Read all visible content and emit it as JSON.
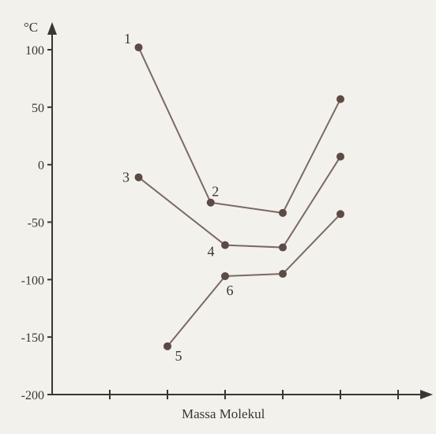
{
  "chart_data": {
    "type": "line",
    "ylabel": "°C",
    "xlabel": "Massa Molekul",
    "ylim": [
      -200,
      115
    ],
    "yticks": [
      100,
      50,
      0,
      -50,
      -100,
      -150,
      -200
    ],
    "x_tick_count": 6,
    "grid": false,
    "colors": {
      "line": "#7b6a62",
      "point": "#5e4a44",
      "axis": "#3a3633",
      "background": "#f3f1ec"
    },
    "series": [
      {
        "points": [
          {
            "x": 1.5,
            "y": 102,
            "label": "1"
          },
          {
            "x": 2.75,
            "y": -33,
            "label": "2"
          },
          {
            "x": 4.0,
            "y": -42
          },
          {
            "x": 5.0,
            "y": 57
          }
        ]
      },
      {
        "points": [
          {
            "x": 1.5,
            "y": -11,
            "label": "3"
          },
          {
            "x": 3.0,
            "y": -70,
            "label": "4"
          },
          {
            "x": 4.0,
            "y": -72
          },
          {
            "x": 5.0,
            "y": 7
          }
        ]
      },
      {
        "points": [
          {
            "x": 2.0,
            "y": -158,
            "label": "5"
          },
          {
            "x": 3.0,
            "y": -97,
            "label": "6"
          },
          {
            "x": 4.0,
            "y": -95
          },
          {
            "x": 5.0,
            "y": -43
          }
        ]
      }
    ]
  }
}
